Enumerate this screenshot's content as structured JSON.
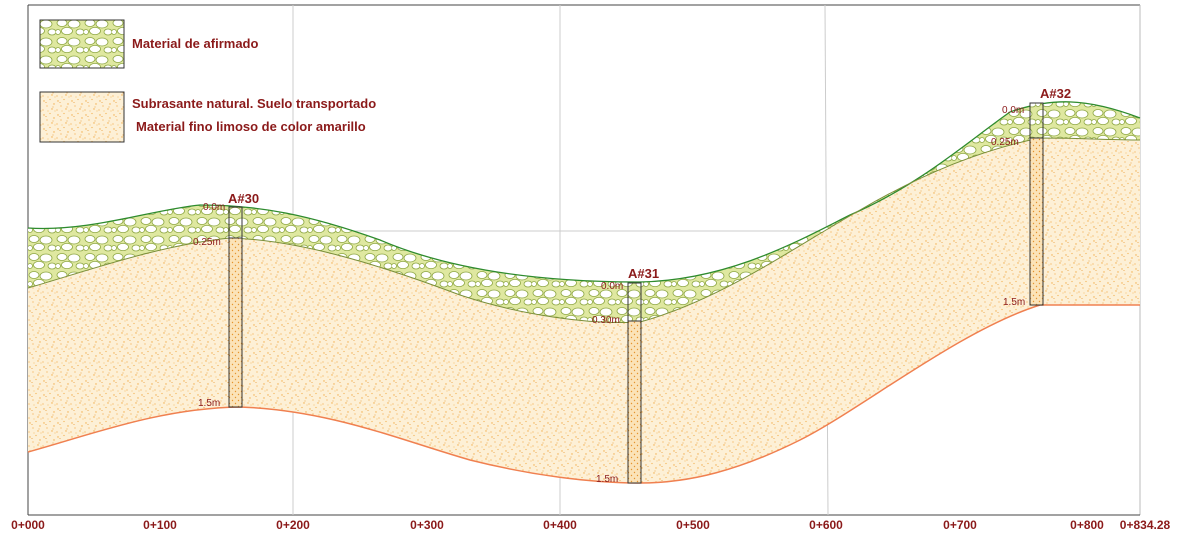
{
  "legend": {
    "items": [
      {
        "label": "Material de afirmado"
      },
      {
        "label_line1": "Subrasante natural.  Suelo transportado",
        "label_line2": "Material fino limoso  de color amarillo"
      }
    ]
  },
  "axis": {
    "labels": [
      "0+000",
      "0+100",
      "0+200",
      "0+300",
      "0+400",
      "0+500",
      "0+600",
      "0+700",
      "0+800",
      "0+834.28"
    ]
  },
  "pits": [
    {
      "name": "A#30",
      "top_depth": "0.0m",
      "mid_depth": "0.25m",
      "bottom_depth": "1.5m"
    },
    {
      "name": "A#31",
      "top_depth": "0.0m",
      "mid_depth": "0.30m",
      "bottom_depth": "1.5m"
    },
    {
      "name": "A#32",
      "top_depth": "0.0m",
      "mid_depth": "0.25m",
      "bottom_depth": "1.5m"
    }
  ],
  "colors": {
    "afirmado_fill": "#dfe8a0",
    "afirmado_pebble": "#ffffff",
    "subrasante_fill": "#fdf0d6",
    "subrasante_dots": "#f2ad4a",
    "ground_line": "#2e8b2e",
    "bottom_line": "#f08050",
    "text": "#8b1a1a"
  }
}
